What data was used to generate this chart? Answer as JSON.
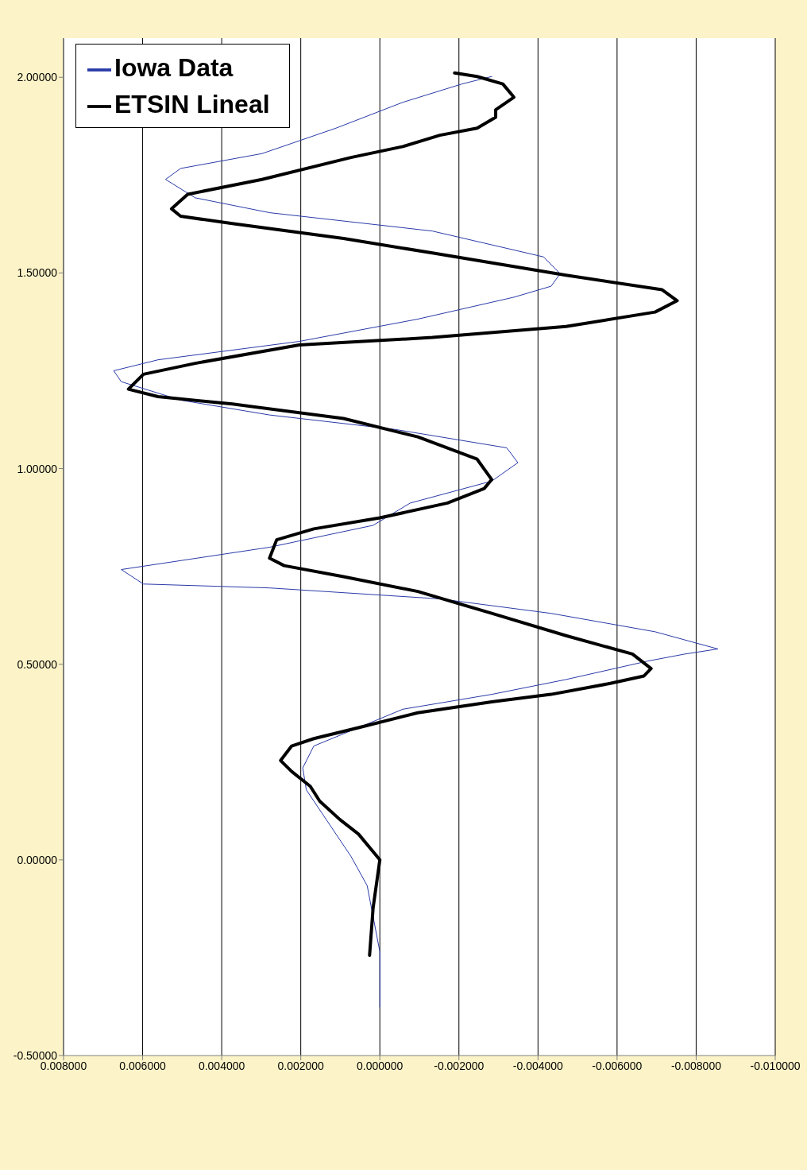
{
  "chart_data": {
    "type": "line",
    "orientation": "horizontal",
    "ylim": [
      -0.5,
      2.1
    ],
    "yticks": [
      {
        "value": -0.5,
        "label": "-0.50000"
      },
      {
        "value": 0,
        "label": "0.00000"
      },
      {
        "value": 0.5,
        "label": "0.50000"
      },
      {
        "value": 1,
        "label": "1.00000"
      },
      {
        "value": 1.5,
        "label": "1.50000"
      },
      {
        "value": 2,
        "label": "2.00000"
      }
    ],
    "xlim": [
      0.008,
      -0.01
    ],
    "xticks": [
      {
        "value": 0.008,
        "label": "0.008000"
      },
      {
        "value": 0.006,
        "label": "0.006000"
      },
      {
        "value": 0.004,
        "label": "0.004000"
      },
      {
        "value": 0.002,
        "label": "0.002000"
      },
      {
        "value": 0,
        "label": "0.000000"
      },
      {
        "value": -0.002,
        "label": "-0.002000"
      },
      {
        "value": -0.004,
        "label": "-0.004000"
      },
      {
        "value": -0.006,
        "label": "-0.006000"
      },
      {
        "value": -0.008,
        "label": "-0.008000"
      },
      {
        "value": -0.01,
        "label": "-0.010000"
      }
    ],
    "grid": "x",
    "legend": "top left",
    "marker": "none",
    "line_style": "solid",
    "series": [
      {
        "name": "Iowa Data",
        "color": "#2a3aa8",
        "x": [
          -0.376,
          -0.235,
          -0.066,
          0.009,
          0.179,
          0.235,
          0.291,
          0.338,
          0.385,
          0.423,
          0.461,
          0.508,
          0.526,
          0.539,
          0.583,
          0.63,
          0.667,
          0.695,
          0.705,
          0.742,
          0.799,
          0.855,
          0.912,
          0.968,
          1.015,
          1.053,
          1.1,
          1.137,
          1.175,
          1.222,
          1.25,
          1.278,
          1.325,
          1.382,
          1.438,
          1.466,
          1.498,
          1.541,
          1.607,
          1.654,
          1.692,
          1.739,
          1.767,
          1.805,
          1.87,
          1.936,
          1.983,
          2.002
        ],
        "values": [
          0,
          0,
          0.00032,
          0.00073,
          0.00186,
          0.00195,
          0.00167,
          0.00054,
          -0.00058,
          -0.00283,
          -0.00471,
          -0.00677,
          -0.00771,
          -0.00855,
          -0.00696,
          -0.00433,
          -0.00152,
          0.00279,
          0.00598,
          0.00654,
          0.00279,
          0.00017,
          -0.00077,
          -0.00283,
          -0.00349,
          -0.00321,
          -0.00039,
          0.00279,
          0.00504,
          0.00654,
          0.00673,
          0.00561,
          0.00204,
          -0.00096,
          -0.00339,
          -0.00433,
          -0.00456,
          -0.00414,
          -0.00133,
          0.00279,
          0.00467,
          0.00542,
          0.00504,
          0.00298,
          0.00111,
          -0.00058,
          -0.00208,
          -0.00283
        ]
      },
      {
        "name": "ETSIN Lineal",
        "color": "#000000",
        "x": [
          -0.244,
          -0.122,
          0,
          0.066,
          0.103,
          0.15,
          0.188,
          0.226,
          0.254,
          0.291,
          0.31,
          0.338,
          0.376,
          0.404,
          0.423,
          0.451,
          0.47,
          0.489,
          0.526,
          0.573,
          0.63,
          0.686,
          0.724,
          0.752,
          0.771,
          0.818,
          0.846,
          0.874,
          0.912,
          0.949,
          0.972,
          1.024,
          1.081,
          1.128,
          1.165,
          1.184,
          1.203,
          1.241,
          1.269,
          1.316,
          1.335,
          1.363,
          1.4,
          1.429,
          1.457,
          1.494,
          1.551,
          1.588,
          1.626,
          1.645,
          1.664,
          1.701,
          1.739,
          1.795,
          1.823,
          1.852,
          1.87,
          1.898,
          1.917,
          1.949,
          1.983,
          2.002,
          2.011
        ],
        "values": [
          0.00026,
          0.00017,
          0,
          0.00054,
          0.00101,
          0.00152,
          0.00176,
          0.00223,
          0.00251,
          0.00223,
          0.00167,
          0.00054,
          -0.00096,
          -0.00283,
          -0.00433,
          -0.00583,
          -0.00668,
          -0.00686,
          -0.00639,
          -0.00471,
          -0.00283,
          -0.00096,
          0.00092,
          0.00242,
          0.00279,
          0.00261,
          0.00167,
          0,
          -0.00171,
          -0.00264,
          -0.00283,
          -0.00246,
          -0.00096,
          0.00092,
          0.00373,
          0.00561,
          0.00636,
          0.00598,
          0.00467,
          0.00204,
          -0.00133,
          -0.00471,
          -0.00696,
          -0.00752,
          -0.00714,
          -0.00471,
          -0.00133,
          0.00092,
          0.00373,
          0.00504,
          0.00527,
          0.00486,
          0.00298,
          0.00073,
          -0.00058,
          -0.00152,
          -0.00246,
          -0.00293,
          -0.00293,
          -0.00339,
          -0.00311,
          -0.00246,
          -0.00189
        ]
      }
    ]
  }
}
